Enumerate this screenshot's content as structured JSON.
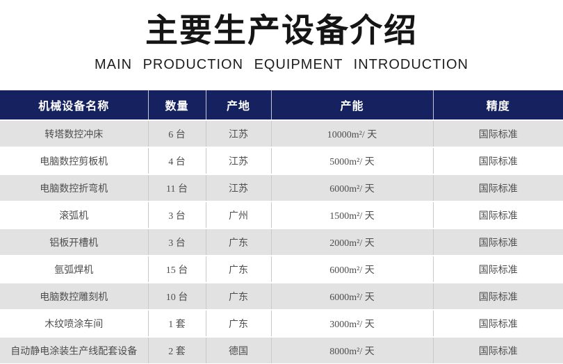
{
  "page": {
    "title": "主要生产设备介绍",
    "subtitle": "MAIN PRODUCTION EQUIPMENT INTRODUCTION"
  },
  "colors": {
    "header_bg": "#16225f",
    "header_text": "#ffffff",
    "row_alt_bg": "#e2e2e2",
    "row_bg": "#ffffff",
    "body_text": "#4d4d4d",
    "cell_divider": "#c9c9c9",
    "table_bottom_rule": "#c3c3c3",
    "title_text": "#151515"
  },
  "table": {
    "headers": [
      "机械设备名称",
      "数量",
      "产地",
      "产能",
      "精度"
    ],
    "rows": [
      {
        "name": "转塔数控冲床",
        "quantity": "6 台",
        "origin": "江苏",
        "capacity": "10000m²/ 天",
        "precision": "国际标准"
      },
      {
        "name": "电脑数控剪板机",
        "quantity": "4 台",
        "origin": "江苏",
        "capacity": "5000m²/ 天",
        "precision": "国际标准"
      },
      {
        "name": "电脑数控折弯机",
        "quantity": "11 台",
        "origin": "江苏",
        "capacity": "6000m²/ 天",
        "precision": "国际标准"
      },
      {
        "name": "滚弧机",
        "quantity": "3 台",
        "origin": "广州",
        "capacity": "1500m²/ 天",
        "precision": "国际标准"
      },
      {
        "name": "铝板开槽机",
        "quantity": "3 台",
        "origin": "广东",
        "capacity": "2000m²/ 天",
        "precision": "国际标准"
      },
      {
        "name": "氩弧焊机",
        "quantity": "15 台",
        "origin": "广东",
        "capacity": "6000m²/ 天",
        "precision": "国际标准"
      },
      {
        "name": "电脑数控雕刻机",
        "quantity": "10 台",
        "origin": "广东",
        "capacity": "6000m²/ 天",
        "precision": "国际标准"
      },
      {
        "name": "木纹喷涂车间",
        "quantity": "1 套",
        "origin": "广东",
        "capacity": "3000m²/ 天",
        "precision": "国际标准"
      },
      {
        "name": "自动静电涂装生产线配套设备",
        "quantity": "2 套",
        "origin": "德国",
        "capacity": "8000m²/ 天",
        "precision": "国际标准"
      }
    ]
  }
}
